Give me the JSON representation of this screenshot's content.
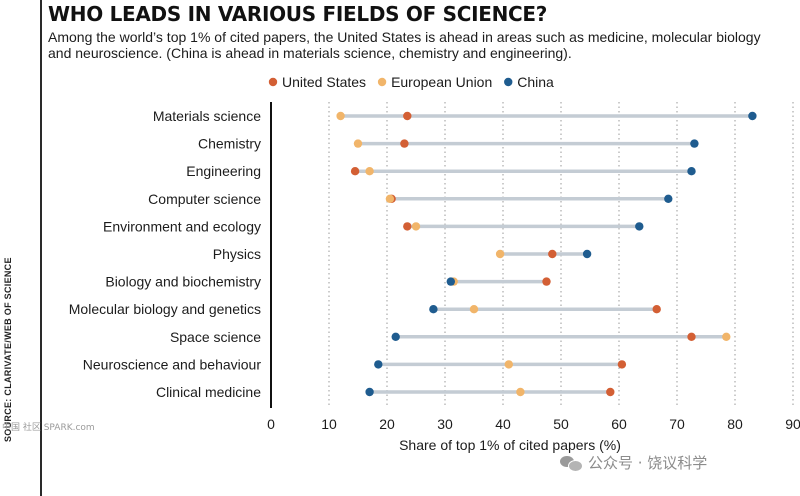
{
  "title": "WHO LEADS IN VARIOUS FIELDS OF SCIENCE?",
  "subtitle": "Among the world’s top 1% of cited papers, the United States is ahead in areas such as medicine, molecular biology and neuroscience. (China is ahead in materials science, chemistry and engineering).",
  "source": "SOURCE: CLARIVATE/WEB OF SCIENCE",
  "watermark_left": "中国 社区 SPARK.com",
  "watermark_right": "公众号 · 饶议科学",
  "chart_data": {
    "type": "dot-plot",
    "title": "WHO LEADS IN VARIOUS FIELDS OF SCIENCE?",
    "xlabel": "Share of top 1% of cited papers (%)",
    "ylabel": "",
    "xlim": [
      0,
      90
    ],
    "xticks": [
      0,
      10,
      20,
      30,
      40,
      50,
      60,
      70,
      80,
      90
    ],
    "grid": "vertical-dotted",
    "legend_position": "top",
    "categories": [
      "Materials science",
      "Chemistry",
      "Engineering",
      "Computer science",
      "Environment and ecology",
      "Physics",
      "Biology and biochemistry",
      "Molecular biology and genetics",
      "Space science",
      "Neuroscience and behaviour",
      "Clinical medicine"
    ],
    "series": [
      {
        "name": "United States",
        "color": "#d35f34",
        "values": [
          23.5,
          23,
          14.5,
          20.8,
          23.5,
          48.5,
          47.5,
          66.5,
          72.5,
          60.5,
          58.5
        ]
      },
      {
        "name": "European Union",
        "color": "#f1b56a",
        "values": [
          12,
          15,
          17,
          20.5,
          25,
          39.5,
          31.5,
          35,
          78.5,
          41,
          43
        ]
      },
      {
        "name": "China",
        "color": "#1f5c8f",
        "values": [
          83,
          73,
          72.5,
          68.5,
          63.5,
          54.5,
          31,
          28,
          21.5,
          18.5,
          17
        ]
      }
    ],
    "line_color": "#c4ccd4"
  }
}
